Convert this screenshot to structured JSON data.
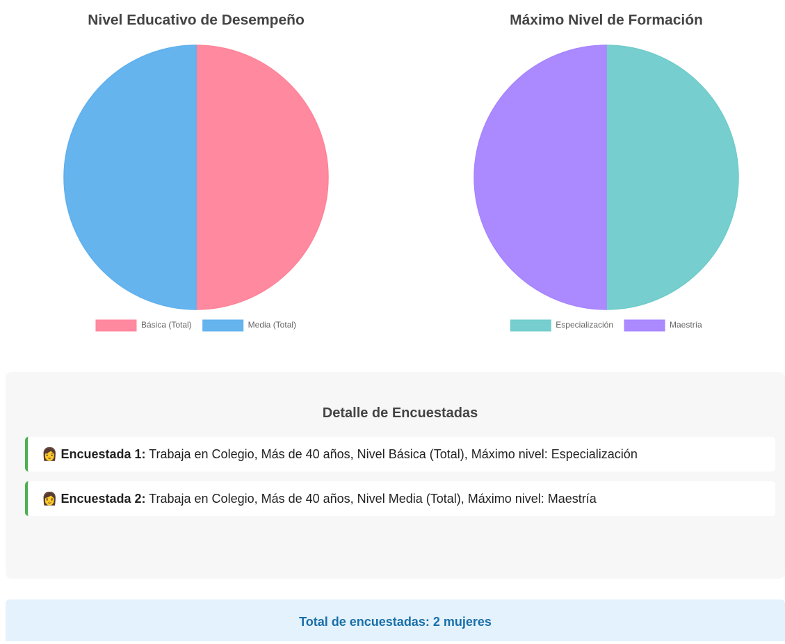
{
  "chart_data": [
    {
      "type": "pie",
      "title": "Nivel Educativo de Desempeño",
      "categories": [
        "Básica (Total)",
        "Media (Total)"
      ],
      "values": [
        1,
        1
      ],
      "colors": [
        "#ff8399",
        "#5eb0ed"
      ],
      "legend": "bottom"
    },
    {
      "type": "pie",
      "title": "Máximo Nivel de Formación",
      "categories": [
        "Especialización",
        "Maestría"
      ],
      "values": [
        1,
        1
      ],
      "colors": [
        "#6fcbcb",
        "#a784ff"
      ],
      "legend": "bottom"
    }
  ],
  "details": {
    "title": "Detalle de Encuestadas",
    "items": [
      {
        "icon": "👩",
        "label": "Encuestada 1:",
        "text": "Trabaja en Colegio, Más de 40 años, Nivel Básica (Total), Máximo nivel: Especialización"
      },
      {
        "icon": "👩",
        "label": "Encuestada 2:",
        "text": "Trabaja en Colegio, Más de 40 años, Nivel Media (Total), Máximo nivel: Maestría"
      }
    ]
  },
  "total": "Total de encuestadas: 2 mujeres"
}
